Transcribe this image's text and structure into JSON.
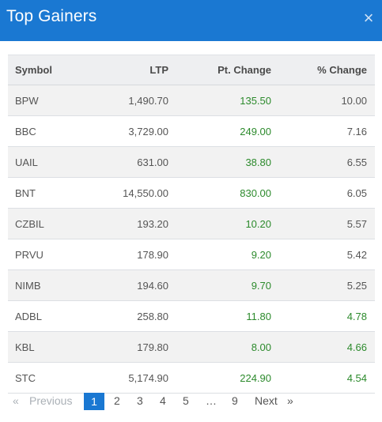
{
  "header": {
    "title": "Top Gainers",
    "close_icon": "×"
  },
  "table": {
    "columns": [
      "Symbol",
      "LTP",
      "Pt. Change",
      "% Change"
    ],
    "rows": [
      {
        "symbol": "BPW",
        "ltp": "1,490.70",
        "pt_change": "135.50",
        "pct_change": "10.00"
      },
      {
        "symbol": "BBC",
        "ltp": "3,729.00",
        "pt_change": "249.00",
        "pct_change": "7.16"
      },
      {
        "symbol": "UAIL",
        "ltp": "631.00",
        "pt_change": "38.80",
        "pct_change": "6.55"
      },
      {
        "symbol": "BNT",
        "ltp": "14,550.00",
        "pt_change": "830.00",
        "pct_change": "6.05"
      },
      {
        "symbol": "CZBIL",
        "ltp": "193.20",
        "pt_change": "10.20",
        "pct_change": "5.57"
      },
      {
        "symbol": "PRVU",
        "ltp": "178.90",
        "pt_change": "9.20",
        "pct_change": "5.42"
      },
      {
        "symbol": "NIMB",
        "ltp": "194.60",
        "pt_change": "9.70",
        "pct_change": "5.25"
      },
      {
        "symbol": "ADBL",
        "ltp": "258.80",
        "pt_change": "11.80",
        "pct_change": "4.78"
      },
      {
        "symbol": "KBL",
        "ltp": "179.80",
        "pt_change": "8.00",
        "pct_change": "4.66"
      },
      {
        "symbol": "STC",
        "ltp": "5,174.90",
        "pt_change": "224.90",
        "pct_change": "4.54"
      }
    ]
  },
  "pagination": {
    "first_arrow": "«",
    "previous": "Previous",
    "pages": [
      "1",
      "2",
      "3",
      "4",
      "5",
      "…",
      "9"
    ],
    "active_page": "1",
    "next": "Next",
    "last_arrow": "»"
  },
  "colors": {
    "header_bg": "#1a78d2",
    "positive": "#2c8a2c",
    "active_page": "#1a78d2"
  }
}
